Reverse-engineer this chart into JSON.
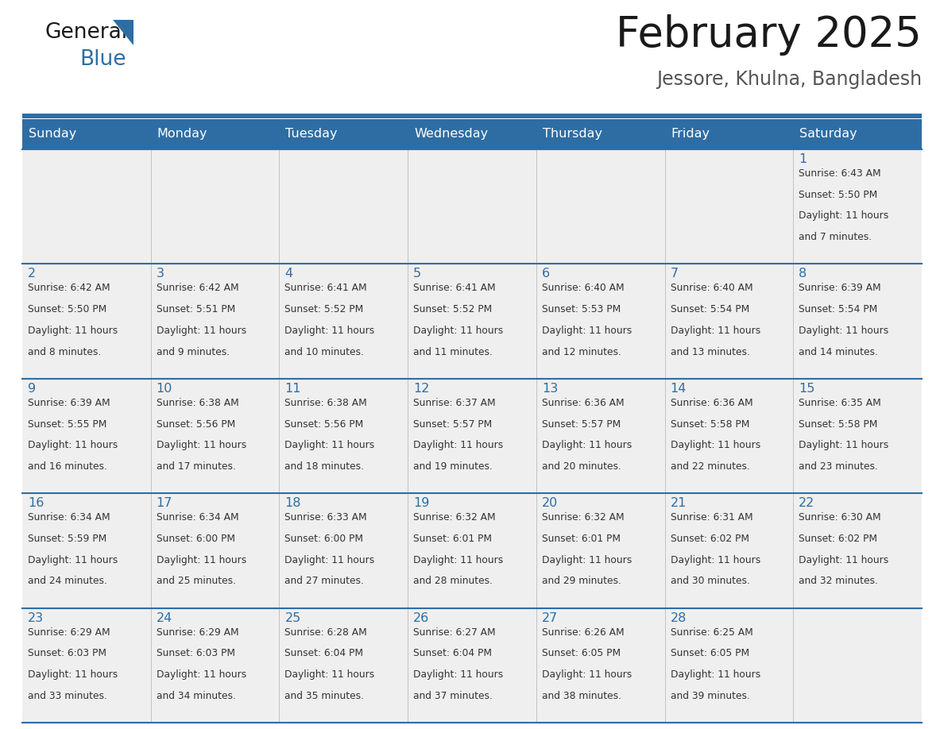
{
  "title": "February 2025",
  "subtitle": "Jessore, Khulna, Bangladesh",
  "header_bg": "#2E6DA4",
  "header_text": "#FFFFFF",
  "cell_bg": "#EFEFEF",
  "text_color": "#333333",
  "day_number_color": "#2E6DA4",
  "line_color": "#2E6DA4",
  "days_of_week": [
    "Sunday",
    "Monday",
    "Tuesday",
    "Wednesday",
    "Thursday",
    "Friday",
    "Saturday"
  ],
  "weeks": [
    [
      {
        "day": null,
        "sunrise": null,
        "sunset": null,
        "daylight_line1": null,
        "daylight_line2": null
      },
      {
        "day": null,
        "sunrise": null,
        "sunset": null,
        "daylight_line1": null,
        "daylight_line2": null
      },
      {
        "day": null,
        "sunrise": null,
        "sunset": null,
        "daylight_line1": null,
        "daylight_line2": null
      },
      {
        "day": null,
        "sunrise": null,
        "sunset": null,
        "daylight_line1": null,
        "daylight_line2": null
      },
      {
        "day": null,
        "sunrise": null,
        "sunset": null,
        "daylight_line1": null,
        "daylight_line2": null
      },
      {
        "day": null,
        "sunrise": null,
        "sunset": null,
        "daylight_line1": null,
        "daylight_line2": null
      },
      {
        "day": 1,
        "sunrise": "6:43 AM",
        "sunset": "5:50 PM",
        "daylight_line1": "Daylight: 11 hours",
        "daylight_line2": "and 7 minutes."
      }
    ],
    [
      {
        "day": 2,
        "sunrise": "6:42 AM",
        "sunset": "5:50 PM",
        "daylight_line1": "Daylight: 11 hours",
        "daylight_line2": "and 8 minutes."
      },
      {
        "day": 3,
        "sunrise": "6:42 AM",
        "sunset": "5:51 PM",
        "daylight_line1": "Daylight: 11 hours",
        "daylight_line2": "and 9 minutes."
      },
      {
        "day": 4,
        "sunrise": "6:41 AM",
        "sunset": "5:52 PM",
        "daylight_line1": "Daylight: 11 hours",
        "daylight_line2": "and 10 minutes."
      },
      {
        "day": 5,
        "sunrise": "6:41 AM",
        "sunset": "5:52 PM",
        "daylight_line1": "Daylight: 11 hours",
        "daylight_line2": "and 11 minutes."
      },
      {
        "day": 6,
        "sunrise": "6:40 AM",
        "sunset": "5:53 PM",
        "daylight_line1": "Daylight: 11 hours",
        "daylight_line2": "and 12 minutes."
      },
      {
        "day": 7,
        "sunrise": "6:40 AM",
        "sunset": "5:54 PM",
        "daylight_line1": "Daylight: 11 hours",
        "daylight_line2": "and 13 minutes."
      },
      {
        "day": 8,
        "sunrise": "6:39 AM",
        "sunset": "5:54 PM",
        "daylight_line1": "Daylight: 11 hours",
        "daylight_line2": "and 14 minutes."
      }
    ],
    [
      {
        "day": 9,
        "sunrise": "6:39 AM",
        "sunset": "5:55 PM",
        "daylight_line1": "Daylight: 11 hours",
        "daylight_line2": "and 16 minutes."
      },
      {
        "day": 10,
        "sunrise": "6:38 AM",
        "sunset": "5:56 PM",
        "daylight_line1": "Daylight: 11 hours",
        "daylight_line2": "and 17 minutes."
      },
      {
        "day": 11,
        "sunrise": "6:38 AM",
        "sunset": "5:56 PM",
        "daylight_line1": "Daylight: 11 hours",
        "daylight_line2": "and 18 minutes."
      },
      {
        "day": 12,
        "sunrise": "6:37 AM",
        "sunset": "5:57 PM",
        "daylight_line1": "Daylight: 11 hours",
        "daylight_line2": "and 19 minutes."
      },
      {
        "day": 13,
        "sunrise": "6:36 AM",
        "sunset": "5:57 PM",
        "daylight_line1": "Daylight: 11 hours",
        "daylight_line2": "and 20 minutes."
      },
      {
        "day": 14,
        "sunrise": "6:36 AM",
        "sunset": "5:58 PM",
        "daylight_line1": "Daylight: 11 hours",
        "daylight_line2": "and 22 minutes."
      },
      {
        "day": 15,
        "sunrise": "6:35 AM",
        "sunset": "5:58 PM",
        "daylight_line1": "Daylight: 11 hours",
        "daylight_line2": "and 23 minutes."
      }
    ],
    [
      {
        "day": 16,
        "sunrise": "6:34 AM",
        "sunset": "5:59 PM",
        "daylight_line1": "Daylight: 11 hours",
        "daylight_line2": "and 24 minutes."
      },
      {
        "day": 17,
        "sunrise": "6:34 AM",
        "sunset": "6:00 PM",
        "daylight_line1": "Daylight: 11 hours",
        "daylight_line2": "and 25 minutes."
      },
      {
        "day": 18,
        "sunrise": "6:33 AM",
        "sunset": "6:00 PM",
        "daylight_line1": "Daylight: 11 hours",
        "daylight_line2": "and 27 minutes."
      },
      {
        "day": 19,
        "sunrise": "6:32 AM",
        "sunset": "6:01 PM",
        "daylight_line1": "Daylight: 11 hours",
        "daylight_line2": "and 28 minutes."
      },
      {
        "day": 20,
        "sunrise": "6:32 AM",
        "sunset": "6:01 PM",
        "daylight_line1": "Daylight: 11 hours",
        "daylight_line2": "and 29 minutes."
      },
      {
        "day": 21,
        "sunrise": "6:31 AM",
        "sunset": "6:02 PM",
        "daylight_line1": "Daylight: 11 hours",
        "daylight_line2": "and 30 minutes."
      },
      {
        "day": 22,
        "sunrise": "6:30 AM",
        "sunset": "6:02 PM",
        "daylight_line1": "Daylight: 11 hours",
        "daylight_line2": "and 32 minutes."
      }
    ],
    [
      {
        "day": 23,
        "sunrise": "6:29 AM",
        "sunset": "6:03 PM",
        "daylight_line1": "Daylight: 11 hours",
        "daylight_line2": "and 33 minutes."
      },
      {
        "day": 24,
        "sunrise": "6:29 AM",
        "sunset": "6:03 PM",
        "daylight_line1": "Daylight: 11 hours",
        "daylight_line2": "and 34 minutes."
      },
      {
        "day": 25,
        "sunrise": "6:28 AM",
        "sunset": "6:04 PM",
        "daylight_line1": "Daylight: 11 hours",
        "daylight_line2": "and 35 minutes."
      },
      {
        "day": 26,
        "sunrise": "6:27 AM",
        "sunset": "6:04 PM",
        "daylight_line1": "Daylight: 11 hours",
        "daylight_line2": "and 37 minutes."
      },
      {
        "day": 27,
        "sunrise": "6:26 AM",
        "sunset": "6:05 PM",
        "daylight_line1": "Daylight: 11 hours",
        "daylight_line2": "and 38 minutes."
      },
      {
        "day": 28,
        "sunrise": "6:25 AM",
        "sunset": "6:05 PM",
        "daylight_line1": "Daylight: 11 hours",
        "daylight_line2": "and 39 minutes."
      },
      {
        "day": null,
        "sunrise": null,
        "sunset": null,
        "daylight_line1": null,
        "daylight_line2": null
      }
    ]
  ]
}
